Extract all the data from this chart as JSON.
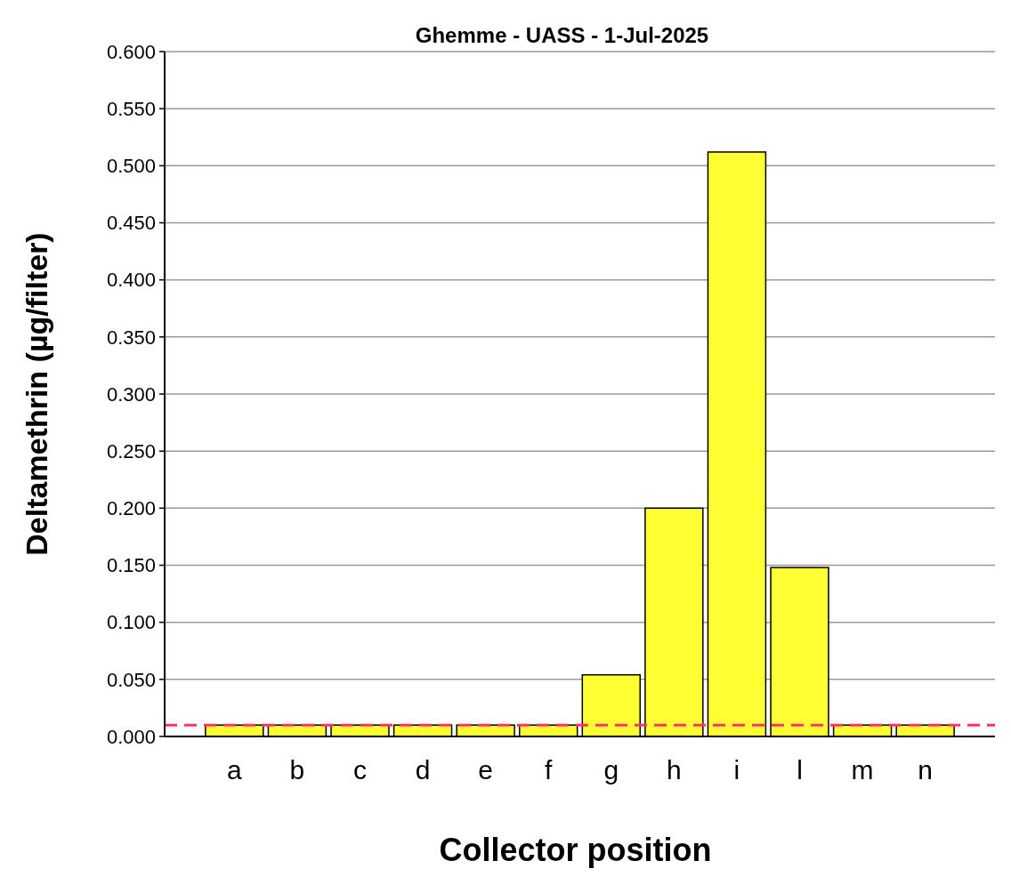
{
  "chart_data": {
    "type": "bar",
    "title": "Ghemme - UASS - 1-Jul-2025",
    "xlabel": "Collector position",
    "ylabel": "Deltamethrin (µg/filter)",
    "categories": [
      "a",
      "b",
      "c",
      "d",
      "e",
      "f",
      "g",
      "h",
      "i",
      "l",
      "m",
      "n"
    ],
    "values": [
      0.01,
      0.01,
      0.01,
      0.01,
      0.01,
      0.01,
      0.054,
      0.2,
      0.512,
      0.148,
      0.01,
      0.01
    ],
    "color": "#ffff33",
    "ylim": [
      0,
      0.6
    ],
    "yticks": [
      {
        "value": 0,
        "label": "0.000"
      },
      {
        "value": 0.05,
        "label": "0.050"
      },
      {
        "value": 0.1,
        "label": "0.100"
      },
      {
        "value": 0.15,
        "label": "0.150"
      },
      {
        "value": 0.2,
        "label": "0.200"
      },
      {
        "value": 0.25,
        "label": "0.250"
      },
      {
        "value": 0.3,
        "label": "0.300"
      },
      {
        "value": 0.35,
        "label": "0.350"
      },
      {
        "value": 0.4,
        "label": "0.400"
      },
      {
        "value": 0.45,
        "label": "0.450"
      },
      {
        "value": 0.5,
        "label": "0.500"
      },
      {
        "value": 0.55,
        "label": "0.550"
      },
      {
        "value": 0.6,
        "label": "0.600"
      }
    ],
    "grid": "y",
    "ref_lines": [
      {
        "axis": "y",
        "value": 0.01,
        "color": "#ff3366",
        "line_style": "dashed"
      }
    ]
  }
}
